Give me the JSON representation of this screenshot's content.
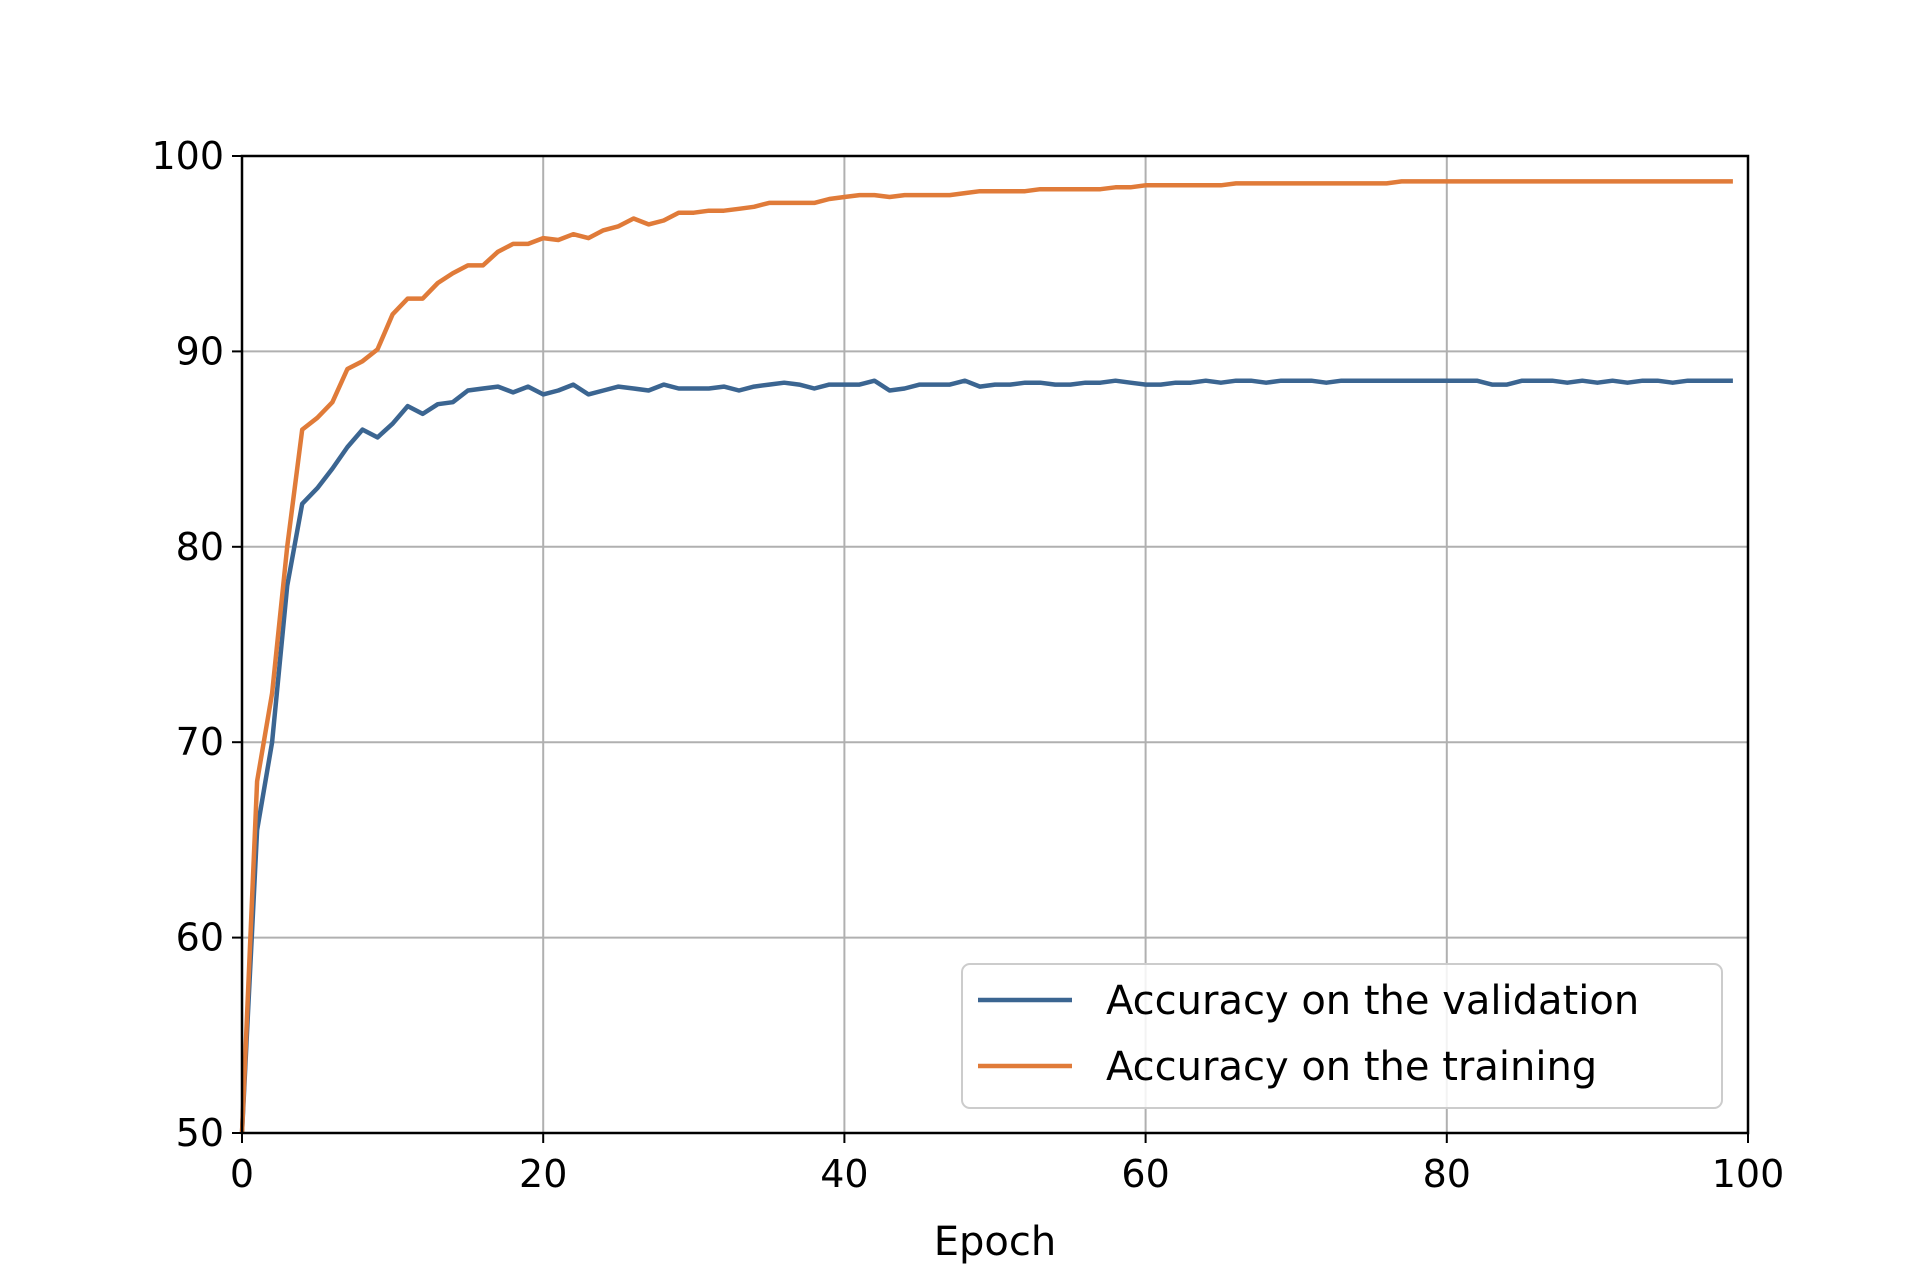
{
  "chart_data": {
    "type": "line",
    "title": "",
    "xlabel": "Epoch",
    "ylabel": "",
    "xlim": [
      0,
      100
    ],
    "ylim": [
      50,
      100
    ],
    "xticks": [
      0,
      20,
      40,
      60,
      80,
      100
    ],
    "yticks": [
      50,
      60,
      70,
      80,
      90,
      100
    ],
    "grid": true,
    "legend_position": "lower-right",
    "x": [
      0,
      1,
      2,
      3,
      4,
      5,
      6,
      7,
      8,
      9,
      10,
      11,
      12,
      13,
      14,
      15,
      16,
      17,
      18,
      19,
      20,
      21,
      22,
      23,
      24,
      25,
      26,
      27,
      28,
      29,
      30,
      31,
      32,
      33,
      34,
      35,
      36,
      37,
      38,
      39,
      40,
      41,
      42,
      43,
      44,
      45,
      46,
      47,
      48,
      49,
      50,
      51,
      52,
      53,
      54,
      55,
      56,
      57,
      58,
      59,
      60,
      61,
      62,
      63,
      64,
      65,
      66,
      67,
      68,
      69,
      70,
      71,
      72,
      73,
      74,
      75,
      76,
      77,
      78,
      79,
      80,
      81,
      82,
      83,
      84,
      85,
      86,
      87,
      88,
      89,
      90,
      91,
      92,
      93,
      94,
      95,
      96,
      97,
      98,
      99
    ],
    "series": [
      {
        "name": "Accuracy on the validation",
        "color": "#3b6591",
        "values": [
          50,
          65.5,
          70,
          78,
          82.2,
          83,
          84,
          85.1,
          86,
          85.6,
          86.3,
          87.2,
          86.8,
          87.3,
          87.4,
          88.0,
          88.1,
          88.2,
          87.9,
          88.2,
          87.8,
          88.0,
          88.3,
          87.8,
          88.0,
          88.2,
          88.1,
          88.0,
          88.3,
          88.1,
          88.1,
          88.1,
          88.2,
          88.0,
          88.2,
          88.3,
          88.4,
          88.3,
          88.1,
          88.3,
          88.3,
          88.3,
          88.5,
          88.0,
          88.1,
          88.3,
          88.3,
          88.3,
          88.5,
          88.2,
          88.3,
          88.3,
          88.4,
          88.4,
          88.3,
          88.3,
          88.4,
          88.4,
          88.5,
          88.4,
          88.3,
          88.3,
          88.4,
          88.4,
          88.5,
          88.4,
          88.5,
          88.5,
          88.4,
          88.5,
          88.5,
          88.5,
          88.4,
          88.5,
          88.5,
          88.5,
          88.5,
          88.5,
          88.5,
          88.5,
          88.5,
          88.5,
          88.5,
          88.3,
          88.3,
          88.5,
          88.5,
          88.5,
          88.4,
          88.5,
          88.4,
          88.5,
          88.4,
          88.5,
          88.5,
          88.4,
          88.5,
          88.5,
          88.5,
          88.5
        ]
      },
      {
        "name": "Accuracy on the training",
        "color": "#e07b39",
        "values": [
          50,
          68,
          72.5,
          80,
          86,
          86.6,
          87.4,
          89.1,
          89.5,
          90.1,
          91.9,
          92.7,
          92.7,
          93.5,
          94.0,
          94.4,
          94.4,
          95.1,
          95.5,
          95.5,
          95.8,
          95.7,
          96.0,
          95.8,
          96.2,
          96.4,
          96.8,
          96.5,
          96.7,
          97.1,
          97.1,
          97.2,
          97.2,
          97.3,
          97.4,
          97.6,
          97.6,
          97.6,
          97.6,
          97.8,
          97.9,
          98.0,
          98.0,
          97.9,
          98.0,
          98.0,
          98.0,
          98.0,
          98.1,
          98.2,
          98.2,
          98.2,
          98.2,
          98.3,
          98.3,
          98.3,
          98.3,
          98.3,
          98.4,
          98.4,
          98.5,
          98.5,
          98.5,
          98.5,
          98.5,
          98.5,
          98.6,
          98.6,
          98.6,
          98.6,
          98.6,
          98.6,
          98.6,
          98.6,
          98.6,
          98.6,
          98.6,
          98.7,
          98.7,
          98.7,
          98.7,
          98.7,
          98.7,
          98.7,
          98.7,
          98.7,
          98.7,
          98.7,
          98.7,
          98.7,
          98.7,
          98.7,
          98.7,
          98.7,
          98.7,
          98.7,
          98.7,
          98.7,
          98.7,
          98.7
        ]
      }
    ]
  }
}
